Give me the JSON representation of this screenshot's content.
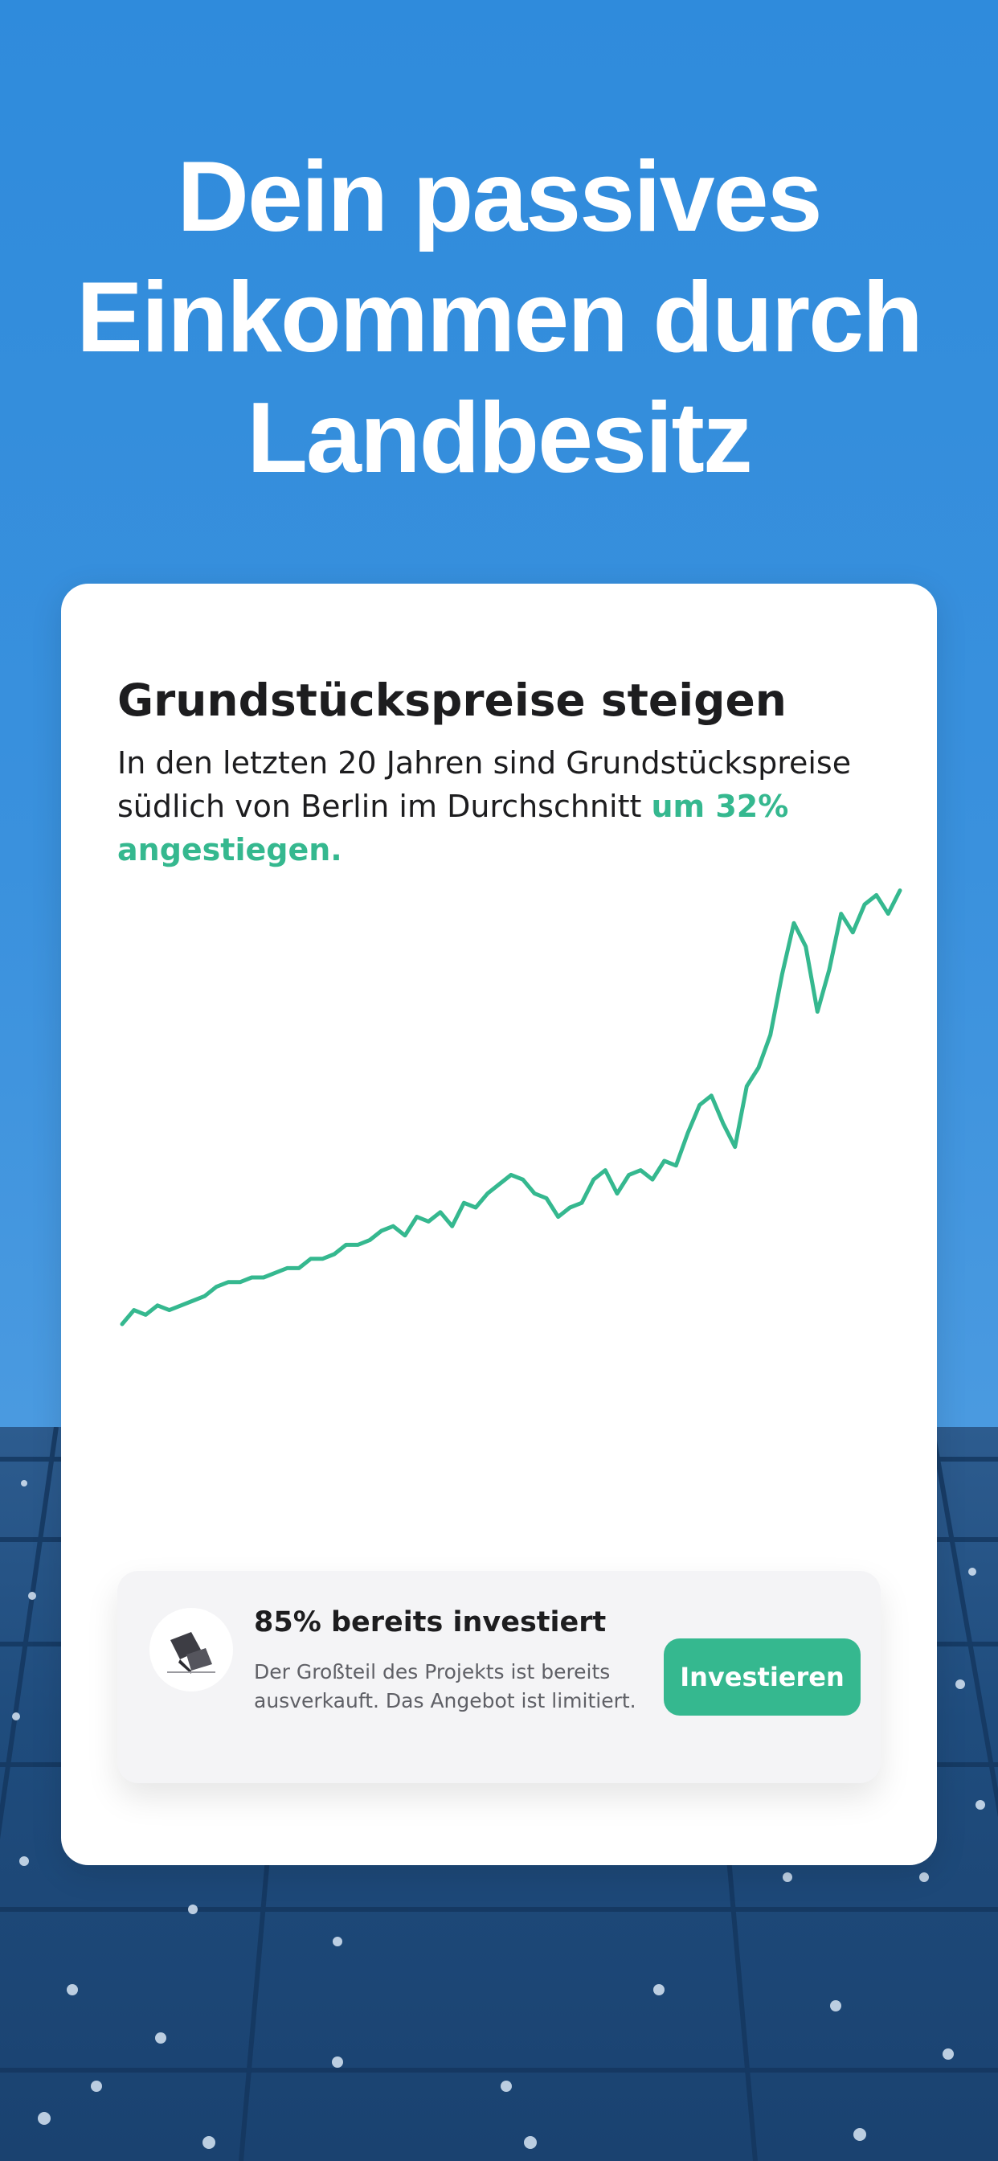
{
  "headline": {
    "line1": "Dein passives",
    "line2": "Einkommen durch",
    "line3": "Landbesitz"
  },
  "card": {
    "title": "Grundstückspreise steigen",
    "text_before": "In den letzten 20 Jahren sind Grundstückspreise südlich von Berlin im Durchschnitt ",
    "text_accent": "um 32% angestiegen."
  },
  "colors": {
    "accent": "#35b88f",
    "background_sky": "#3a91dd",
    "card": "#ffffff"
  },
  "chart_data": {
    "type": "line",
    "title": "",
    "xlabel": "",
    "ylabel": "",
    "grid": false,
    "legend": "none",
    "ylim": [
      0,
      100
    ],
    "series": [
      {
        "color": "#35b88f",
        "values": [
          5,
          8,
          7,
          9,
          8,
          9,
          10,
          11,
          13,
          14,
          14,
          15,
          15,
          16,
          17,
          17,
          19,
          19,
          20,
          22,
          22,
          23,
          25,
          26,
          24,
          28,
          27,
          29,
          26,
          31,
          30,
          33,
          35,
          37,
          36,
          33,
          32,
          28,
          30,
          31,
          36,
          38,
          33,
          37,
          38,
          36,
          40,
          39,
          46,
          52,
          54,
          48,
          43,
          56,
          60,
          67,
          80,
          91,
          86,
          72,
          81,
          93,
          89,
          95,
          97,
          93,
          98
        ]
      }
    ]
  },
  "invest": {
    "title": "85% bereits investiert",
    "text": "Der Großteil des Projekts ist bereits ausverkauft. Das Angebot ist limitiert.",
    "button_label": "Investieren",
    "avatar_icon": "land-plot-icon"
  }
}
